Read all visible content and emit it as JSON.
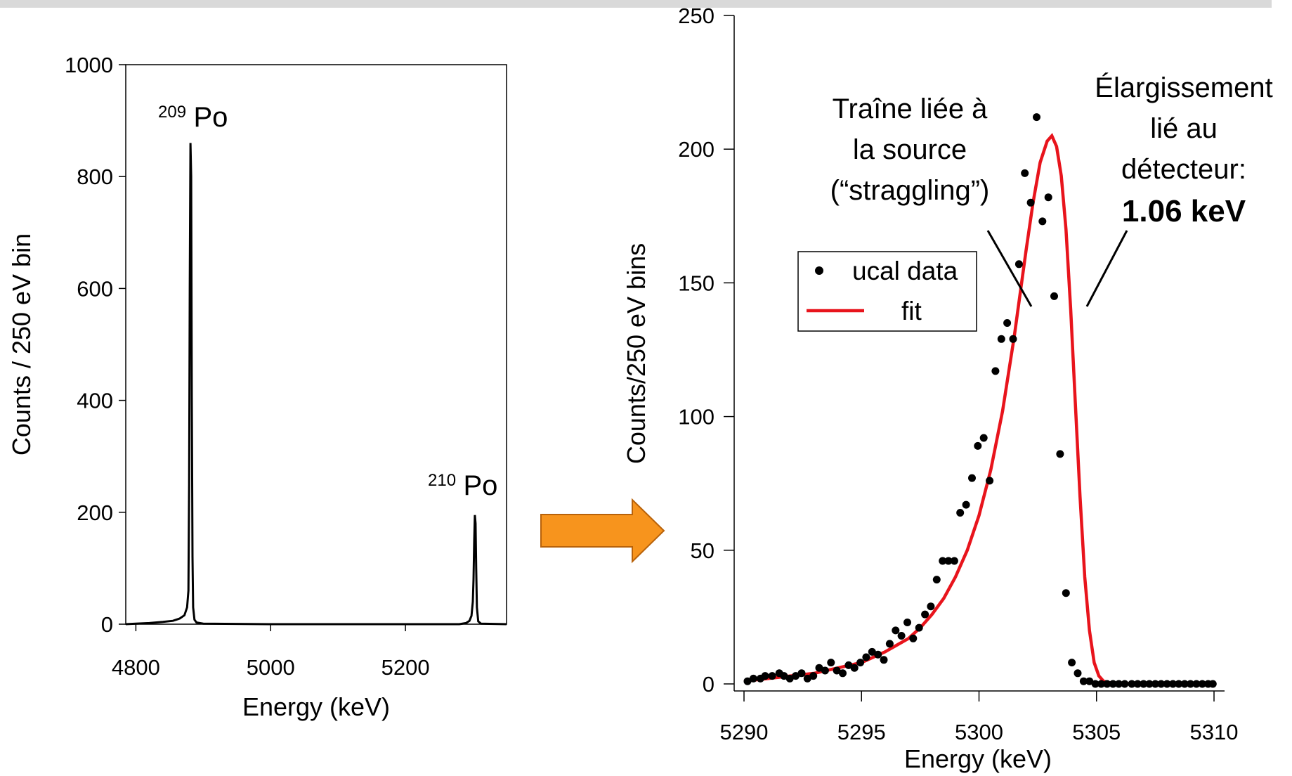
{
  "chart_data": [
    {
      "type": "line",
      "xlabel": "Energy (keV)",
      "ylabel": "Counts / 250 eV bin",
      "xlim": [
        4785,
        5350
      ],
      "ylim": [
        0,
        1000
      ],
      "xticks": [
        "4800",
        "5000",
        "5200"
      ],
      "yticks": [
        "0",
        "200",
        "400",
        "600",
        "800",
        "1000"
      ],
      "grid": false,
      "series": [
        {
          "x": [
            4785,
            4800,
            4820,
            4840,
            4855,
            4865,
            4872,
            4876,
            4878,
            4879,
            4880,
            4881,
            4882,
            4883,
            4884,
            4885,
            4887,
            4890,
            4900,
            5000,
            5200,
            5280,
            5290,
            5295,
            5298,
            5300,
            5301,
            5302,
            5303,
            5304,
            5305,
            5306,
            5308,
            5312,
            5350
          ],
          "y": [
            0,
            1,
            2,
            4,
            6,
            10,
            16,
            30,
            60,
            250,
            600,
            860,
            800,
            400,
            120,
            30,
            8,
            3,
            1,
            0,
            0,
            0,
            2,
            6,
            15,
            40,
            80,
            150,
            195,
            180,
            100,
            30,
            5,
            1,
            0
          ]
        }
      ],
      "annotations": [
        {
          "sup": "209",
          "text": "Po",
          "x": 4882,
          "y": 860
        },
        {
          "sup": "210",
          "text": "Po",
          "x": 5303,
          "y": 195
        }
      ]
    },
    {
      "type": "scatter",
      "xlabel": "Energy (keV)",
      "ylabel": "Counts/250 eV bins",
      "xlim": [
        5290,
        5310
      ],
      "ylim": [
        0,
        250
      ],
      "xticks": [
        "5290",
        "5295",
        "5300",
        "5305",
        "5310"
      ],
      "yticks": [
        "0",
        "50",
        "100",
        "150",
        "200",
        "250"
      ],
      "grid": false,
      "series": [
        {
          "name": "ucal data",
          "type": "scatter",
          "x": [
            5290.15,
            5290.4,
            5290.7,
            5290.9,
            5291.2,
            5291.5,
            5291.7,
            5291.95,
            5292.2,
            5292.45,
            5292.7,
            5292.95,
            5293.2,
            5293.45,
            5293.7,
            5293.95,
            5294.2,
            5294.45,
            5294.7,
            5294.95,
            5295.2,
            5295.45,
            5295.7,
            5295.95,
            5296.2,
            5296.45,
            5296.7,
            5296.95,
            5297.2,
            5297.45,
            5297.7,
            5297.95,
            5298.2,
            5298.45,
            5298.7,
            5298.95,
            5299.2,
            5299.45,
            5299.7,
            5299.95,
            5300.2,
            5300.45,
            5300.7,
            5300.95,
            5301.2,
            5301.45,
            5301.7,
            5301.95,
            5302.2,
            5302.45,
            5302.7,
            5302.95,
            5303.2,
            5303.45,
            5303.7,
            5303.95,
            5304.2,
            5304.45,
            5304.7,
            5304.95,
            5305.2,
            5305.45,
            5305.7,
            5305.95,
            5306.2,
            5306.5,
            5306.75,
            5307.0,
            5307.25,
            5307.5,
            5307.75,
            5308.0,
            5308.25,
            5308.5,
            5308.75,
            5309.0,
            5309.25,
            5309.5,
            5309.75,
            5309.95
          ],
          "y": [
            1,
            2,
            2,
            3,
            3,
            4,
            3,
            2,
            3,
            4,
            2,
            3,
            6,
            5,
            8,
            5,
            4,
            7,
            6,
            8,
            10,
            12,
            11,
            9,
            15,
            20,
            18,
            23,
            17,
            21,
            26,
            29,
            39,
            46,
            46,
            46,
            64,
            67,
            77,
            89,
            92,
            76,
            117,
            129,
            135,
            129,
            157,
            191,
            180,
            212,
            173,
            182,
            145,
            86,
            34,
            8,
            4,
            1,
            1,
            0,
            0,
            0,
            0,
            0,
            0,
            0,
            0,
            0,
            0,
            0,
            0,
            0,
            0,
            0,
            0,
            0,
            0,
            0,
            0,
            0
          ]
        },
        {
          "name": "fit",
          "type": "line",
          "color": "#e8141c",
          "x": [
            5290,
            5291,
            5292,
            5293,
            5294,
            5295,
            5296,
            5297,
            5297.5,
            5298,
            5298.5,
            5299,
            5299.5,
            5300,
            5300.5,
            5301,
            5301.5,
            5302,
            5302.3,
            5302.6,
            5302.9,
            5303.1,
            5303.3,
            5303.5,
            5303.7,
            5303.9,
            5304.1,
            5304.3,
            5304.5,
            5304.7,
            5304.9,
            5305.1,
            5305.3,
            5305.5,
            5305.7,
            5306,
            5306.5,
            5307,
            5308,
            5309,
            5310
          ],
          "y": [
            1,
            2,
            3,
            4,
            6,
            8,
            12,
            17,
            21,
            26,
            32,
            40,
            50,
            63,
            80,
            102,
            130,
            162,
            180,
            195,
            203,
            205,
            201,
            190,
            170,
            140,
            105,
            70,
            40,
            20,
            8,
            3,
            1,
            0.5,
            0.3,
            0.2,
            0.1,
            0,
            0,
            0,
            0
          ]
        }
      ],
      "annotations": [
        {
          "lines": [
            "Traîne liée à",
            "la source",
            "(“straggling”)"
          ]
        },
        {
          "lines": [
            "Élargissement",
            "lié au",
            "détecteur:"
          ],
          "highlight": "1.06 keV",
          "highlight_color": "#2e3192"
        }
      ]
    }
  ],
  "colors": {
    "arrow_fill": "#f7941d",
    "arrow_stroke": "#b8620a",
    "fit_line": "#e8141c",
    "highlight": "#2e3192",
    "top_bar": "#d9d9d9"
  }
}
